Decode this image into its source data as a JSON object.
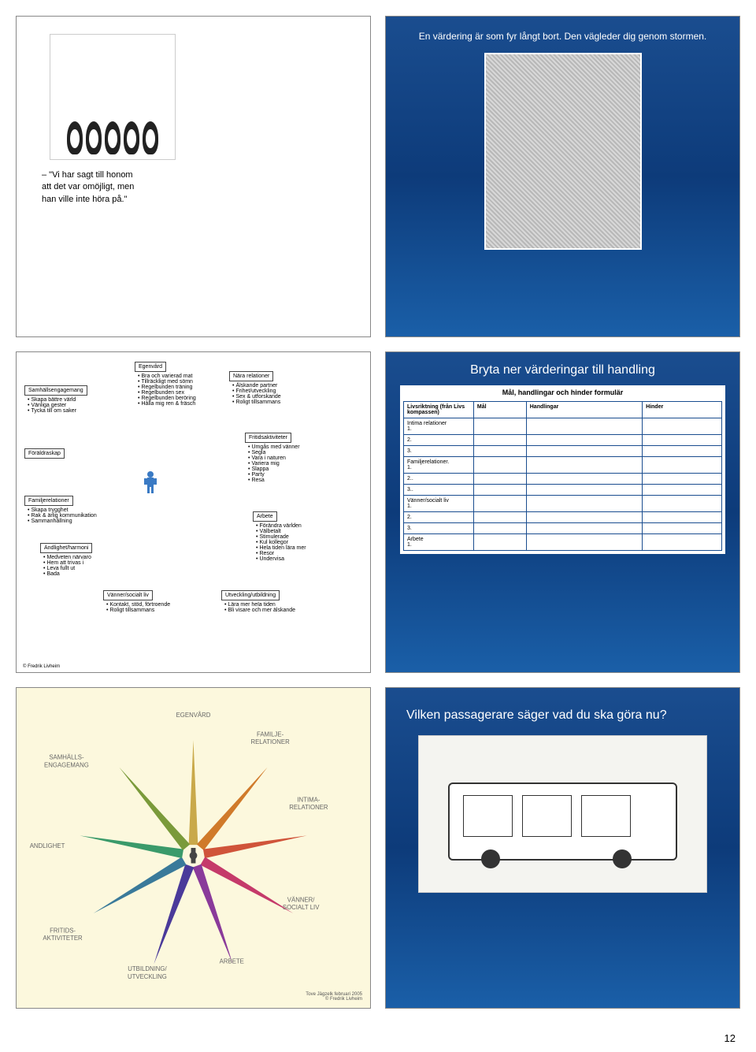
{
  "page_number": "12",
  "slide1": {
    "caption_line1": "– \"Vi har sagt till honom",
    "caption_line2": "att det var omöjligt, men",
    "caption_line3": "han ville inte höra på.\""
  },
  "slide2": {
    "title": "En värdering är som fyr långt bort. Den vägleder dig genom stormen."
  },
  "slide3": {
    "boxes": {
      "egenvard": {
        "title": "Egenvård",
        "items": [
          "Bra och varierad mat",
          "Tillräckligt med sömn",
          "Regelbunden träning",
          "Regelbunden sex",
          "Regelbunden beröring",
          "Hålla mig ren & fräsch"
        ]
      },
      "samhalle": {
        "title": "Samhällsengagemang",
        "items": [
          "Skapa bättre värld",
          "Vänliga gester",
          "Tycka till om saker"
        ]
      },
      "foraldraskap": {
        "title": "Föräldraskap",
        "items": []
      },
      "familj": {
        "title": "Familjerelationer",
        "items": [
          "Skapa trygghet",
          "Rak & ärlig kommunikation",
          "Sammanhållning"
        ]
      },
      "andlighet": {
        "title": "Andlighet/harmoni",
        "items": [
          "Medveten närvaro",
          "Hem att trivas i",
          "Leva fullt ut",
          "Bada"
        ]
      },
      "vanner": {
        "title": "Vänner/socialt liv",
        "items": [
          "Kontakt, stöd, förtroende",
          "Roligt tillsammans"
        ]
      },
      "nara": {
        "title": "Nära relationer",
        "items": [
          "Älskande partner",
          "Frihet/utveckling",
          "Sex & utforskande",
          "Roligt tillsammans"
        ]
      },
      "fritid": {
        "title": "Fritidsaktiviteter",
        "items": [
          "Umgås med vänner",
          "Segla",
          "Vara i naturen",
          "Variera mig",
          "Slappa",
          "Party",
          "Resa"
        ]
      },
      "arbete": {
        "title": "Arbete",
        "items": [
          "Förändra världen",
          "Välbetalt",
          "Stimulerade",
          "Kul kollegor",
          "Hela tiden lära mer",
          "Resor",
          "Undervisa"
        ]
      },
      "utveckling": {
        "title": "Utveckling/utbildning",
        "items": [
          "Lära mer hela tiden",
          "Bli visare och mer älskande"
        ]
      }
    },
    "copyright": "© Fredrik Livheim"
  },
  "slide4": {
    "title": "Bryta ner värderingar till handling",
    "subtitle": "Mål, handlingar och hinder formulär",
    "columns": [
      "Livsriktning (från Livs kompassen)",
      "Mål",
      "Handlingar",
      "Hinder"
    ],
    "rows": [
      "Intima relationer\n1.",
      "2.",
      "3.",
      "Familjerelationer.\n1.",
      "2..",
      "3..",
      "Vänner/socialt liv\n1.",
      "2.",
      "3.",
      "Arbete\n1."
    ]
  },
  "slide5": {
    "labels": [
      "EGENVÅRD",
      "FAMILJE-\nRELATIONER",
      "INTIMA-\nRELATIONER",
      "VÄNNER/\nSOCIALT LIV",
      "ARBETE",
      "UTBILDNING/\nUTVECKLING",
      "FRITIDS-\nAKTIVITETER",
      "ANDLIGHET",
      "SAMHÄLLS-\nENGAGEMANG"
    ],
    "ray_colors": [
      "#c9a94a",
      "#d07a2a",
      "#d0543a",
      "#c53a6a",
      "#8a3a9a",
      "#4a3a9a",
      "#3a7a9a",
      "#3a9a6a",
      "#7a9a3a"
    ],
    "background": "#fcf8dd",
    "credit": "Tove Jägzelk februari 2005\n© Fredrik Livheim"
  },
  "slide6": {
    "title": "Vilken passagerare säger vad du ska göra nu?"
  }
}
